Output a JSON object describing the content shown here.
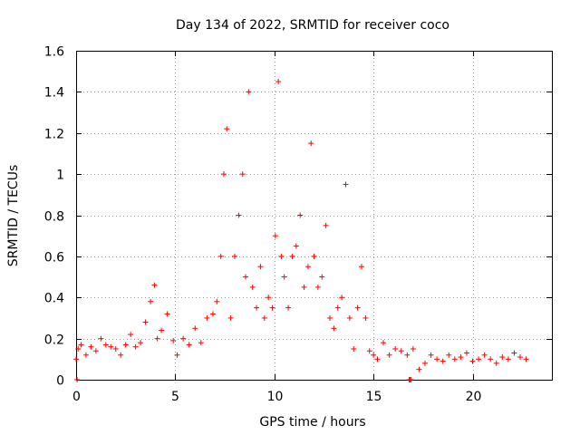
{
  "chart_data": {
    "type": "scatter",
    "title": "Day 134 of 2022, SRMTID for receiver coco",
    "xlabel": "GPS time / hours",
    "ylabel": "SRMTID / TECUs",
    "xlim": [
      0,
      24
    ],
    "ylim": [
      0,
      1.6
    ],
    "xticks": [
      0,
      5,
      10,
      15,
      20
    ],
    "xtick_labels": [
      "0",
      "5",
      "10",
      "15",
      "20"
    ],
    "yticks": [
      0,
      0.2,
      0.4,
      0.6,
      0.8,
      1.0,
      1.2,
      1.4,
      1.6
    ],
    "ytick_labels": [
      "0",
      "0.2",
      "0.4",
      "0.6",
      "0.8",
      "1",
      "1.2",
      "1.4",
      "1.6"
    ],
    "grid": true,
    "marker": "+",
    "color": "#ff0000",
    "series": [
      {
        "name": "SRMTID",
        "x": [
          0.0,
          0.1,
          0.25,
          0.5,
          0.75,
          1.0,
          1.25,
          1.5,
          1.75,
          2.0,
          2.25,
          2.5,
          2.75,
          3.0,
          3.25,
          3.5,
          3.75,
          3.95,
          4.1,
          4.3,
          4.6,
          4.9,
          5.1,
          5.4,
          5.7,
          6.0,
          6.3,
          6.6,
          6.9,
          7.1,
          7.3,
          7.45,
          7.6,
          7.8,
          8.0,
          8.2,
          8.4,
          8.55,
          8.7,
          8.9,
          9.1,
          9.3,
          9.5,
          9.7,
          9.9,
          10.05,
          10.2,
          10.35,
          10.5,
          10.7,
          10.9,
          11.1,
          11.3,
          11.5,
          11.7,
          11.85,
          12.0,
          12.2,
          12.4,
          12.6,
          12.8,
          13.0,
          13.2,
          13.4,
          13.6,
          13.8,
          14.0,
          14.2,
          14.4,
          14.6,
          14.8,
          15.0,
          15.2,
          15.5,
          15.8,
          16.1,
          16.4,
          16.7,
          17.0,
          17.3,
          17.6,
          17.9,
          18.2,
          18.5,
          18.8,
          19.1,
          19.4,
          19.7,
          20.0,
          20.3,
          20.6,
          20.9,
          21.2,
          21.5,
          21.8,
          22.1,
          22.4,
          22.7,
          0.05,
          16.8,
          16.85,
          16.9
        ],
        "y": [
          0.1,
          0.15,
          0.17,
          0.12,
          0.16,
          0.14,
          0.2,
          0.17,
          0.16,
          0.15,
          0.12,
          0.17,
          0.22,
          0.16,
          0.18,
          0.28,
          0.38,
          0.46,
          0.2,
          0.24,
          0.32,
          0.19,
          0.12,
          0.2,
          0.17,
          0.25,
          0.18,
          0.3,
          0.32,
          0.38,
          0.6,
          1.0,
          1.22,
          0.3,
          0.6,
          0.8,
          1.0,
          0.5,
          1.4,
          0.45,
          0.35,
          0.55,
          0.3,
          0.4,
          0.35,
          0.7,
          1.45,
          0.6,
          0.5,
          0.35,
          0.6,
          0.65,
          0.8,
          0.45,
          0.55,
          1.15,
          0.6,
          0.45,
          0.5,
          0.75,
          0.3,
          0.25,
          0.35,
          0.4,
          0.95,
          0.3,
          0.15,
          0.35,
          0.55,
          0.3,
          0.14,
          0.12,
          0.1,
          0.18,
          0.12,
          0.15,
          0.14,
          0.12,
          0.15,
          0.05,
          0.08,
          0.12,
          0.1,
          0.09,
          0.12,
          0.1,
          0.11,
          0.13,
          0.09,
          0.1,
          0.12,
          0.1,
          0.08,
          0.11,
          0.1,
          0.13,
          0.11,
          0.1,
          0.0,
          0.0,
          0.0,
          0.0
        ]
      }
    ]
  }
}
